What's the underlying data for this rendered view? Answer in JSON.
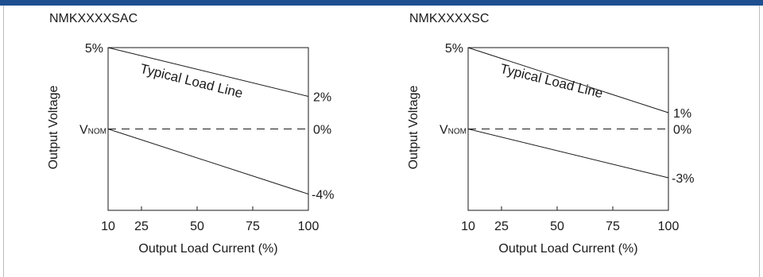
{
  "chart_data": [
    {
      "type": "line",
      "title": "NMKXXXXSAC",
      "xlabel": "Output Load Current (%)",
      "ylabel": "Output Voltage",
      "xticks": [
        "10",
        "25",
        "50",
        "75",
        "100"
      ],
      "xlim": [
        10,
        100
      ],
      "ylim": [
        -5,
        5
      ],
      "y_labels": {
        "top": "5%",
        "nominal_main": "V",
        "nominal_sub": "NOM",
        "nominal": "0%",
        "upper_end": "2%",
        "lower_end": "-4%"
      },
      "annotation": "Typical Load Line",
      "grid": false,
      "series": [
        {
          "x": [
            10,
            100
          ],
          "y": [
            5,
            2
          ]
        },
        {
          "x": [
            10,
            100
          ],
          "y": [
            0,
            -4
          ]
        },
        {
          "x": [
            10,
            100
          ],
          "y": [
            0,
            0
          ],
          "dashed": true
        }
      ]
    },
    {
      "type": "line",
      "title": "NMKXXXXSC",
      "xlabel": "Output Load Current (%)",
      "ylabel": "Output Voltage",
      "xticks": [
        "10",
        "25",
        "50",
        "75",
        "100"
      ],
      "xlim": [
        10,
        100
      ],
      "ylim": [
        -5,
        5
      ],
      "y_labels": {
        "top": "5%",
        "nominal_main": "V",
        "nominal_sub": "NOM",
        "nominal": "0%",
        "upper_end": "1%",
        "lower_end": "-3%"
      },
      "annotation": "Typical Load Line",
      "grid": false,
      "series": [
        {
          "x": [
            10,
            100
          ],
          "y": [
            5,
            1
          ]
        },
        {
          "x": [
            10,
            100
          ],
          "y": [
            0,
            -3
          ]
        },
        {
          "x": [
            10,
            100
          ],
          "y": [
            0,
            0
          ],
          "dashed": true
        }
      ]
    }
  ]
}
